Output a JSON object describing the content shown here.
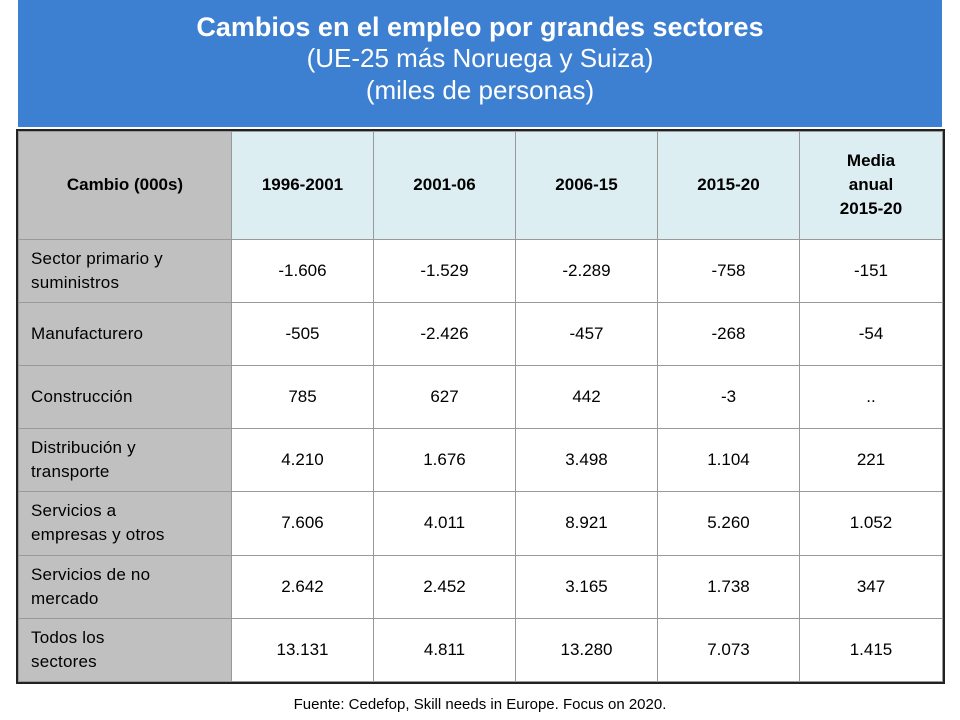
{
  "header": {
    "title": "Cambios en el empleo por grandes sectores",
    "subtitle_1": "(UE-25 más Noruega y Suiza)",
    "subtitle_2": "(miles de personas)"
  },
  "table": {
    "columns": [
      "Cambio (000s)",
      "1996-2001",
      "2001-06",
      "2006-15",
      "2015-20",
      "Media\nanual\n2015-20"
    ],
    "column_labels": {
      "c0": "Cambio (000s)",
      "c1": "1996-2001",
      "c2": "2001-06",
      "c3": "2006-15",
      "c4": "2015-20",
      "c5_line1": "Media",
      "c5_line2": "anual",
      "c5_line3": "2015-20"
    },
    "rows": [
      {
        "label_line1": "Sector primario y",
        "label_line2": "suministros",
        "values": [
          "-1.606",
          "-1.529",
          "-2.289",
          "-758",
          "-151"
        ]
      },
      {
        "label_line1": "Manufacturero",
        "label_line2": "",
        "values": [
          "-505",
          "-2.426",
          "-457",
          "-268",
          "-54"
        ]
      },
      {
        "label_line1": "Construcción",
        "label_line2": "",
        "values": [
          "785",
          "627",
          "442",
          "-3",
          ".."
        ]
      },
      {
        "label_line1": "Distribución y",
        "label_line2": "transporte",
        "values": [
          "4.210",
          "1.676",
          "3.498",
          "1.104",
          "221"
        ]
      },
      {
        "label_line1": "Servicios a",
        "label_line2": "empresas y otros",
        "values": [
          "7.606",
          "4.011",
          "8.921",
          "5.260",
          "1.052"
        ]
      },
      {
        "label_line1": "Servicios de no",
        "label_line2": "mercado",
        "values": [
          "2.642",
          "2.452",
          "3.165",
          "1.738",
          "347"
        ]
      },
      {
        "label_line1": "Todos los",
        "label_line2": "sectores",
        "values": [
          "13.131",
          "4.811",
          "13.280",
          "7.073",
          "1.415"
        ]
      }
    ]
  },
  "footer": {
    "source": "Fuente: Cedefop, Skill needs in Europe. Focus on 2020."
  },
  "colors": {
    "header_bg": "#3d7fd0",
    "header_text": "#ffffff",
    "column_header_bg": "#ddeef3",
    "row_label_bg": "#c0c0c0"
  }
}
